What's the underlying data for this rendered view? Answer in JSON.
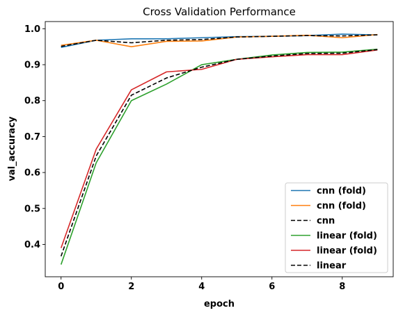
{
  "chart_data": {
    "type": "line",
    "title": "Cross Validation Performance",
    "xlabel": "epoch",
    "ylabel": "val_accuracy",
    "xlim": [
      -0.45,
      9.45
    ],
    "ylim": [
      0.31,
      1.02
    ],
    "xticks": [
      0,
      2,
      4,
      6,
      8
    ],
    "xtick_labels": [
      "0",
      "2",
      "4",
      "6",
      "8"
    ],
    "yticks": [
      0.4,
      0.5,
      0.6,
      0.7,
      0.8,
      0.9,
      1.0
    ],
    "ytick_labels": [
      "0.4",
      "0.5",
      "0.6",
      "0.7",
      "0.8",
      "0.9",
      "1.0"
    ],
    "grid": false,
    "legend_position": "lower-right",
    "x": [
      0,
      1,
      2,
      3,
      4,
      5,
      6,
      7,
      8,
      9
    ],
    "series": [
      {
        "name": "cnn (fold)",
        "color": "#1f77b4",
        "dash": "solid",
        "values": [
          0.948,
          0.968,
          0.972,
          0.972,
          0.975,
          0.978,
          0.979,
          0.981,
          0.985,
          0.983
        ]
      },
      {
        "name": "cnn (fold)",
        "color": "#ff7f0e",
        "dash": "solid",
        "values": [
          0.954,
          0.968,
          0.95,
          0.965,
          0.966,
          0.977,
          0.979,
          0.982,
          0.975,
          0.984
        ]
      },
      {
        "name": "cnn",
        "color": "#000000",
        "dash": "dashed",
        "values": [
          0.951,
          0.968,
          0.961,
          0.968,
          0.97,
          0.977,
          0.979,
          0.981,
          0.98,
          0.983
        ]
      },
      {
        "name": "linear (fold)",
        "color": "#2ca02c",
        "dash": "solid",
        "values": [
          0.344,
          0.627,
          0.8,
          0.846,
          0.9,
          0.915,
          0.927,
          0.934,
          0.935,
          0.943
        ]
      },
      {
        "name": "linear (fold)",
        "color": "#d62728",
        "dash": "solid",
        "values": [
          0.39,
          0.665,
          0.83,
          0.88,
          0.887,
          0.915,
          0.922,
          0.928,
          0.928,
          0.941
        ]
      },
      {
        "name": "linear",
        "color": "#000000",
        "dash": "dashed",
        "values": [
          0.367,
          0.646,
          0.815,
          0.863,
          0.893,
          0.915,
          0.924,
          0.931,
          0.932,
          0.942
        ]
      }
    ]
  }
}
